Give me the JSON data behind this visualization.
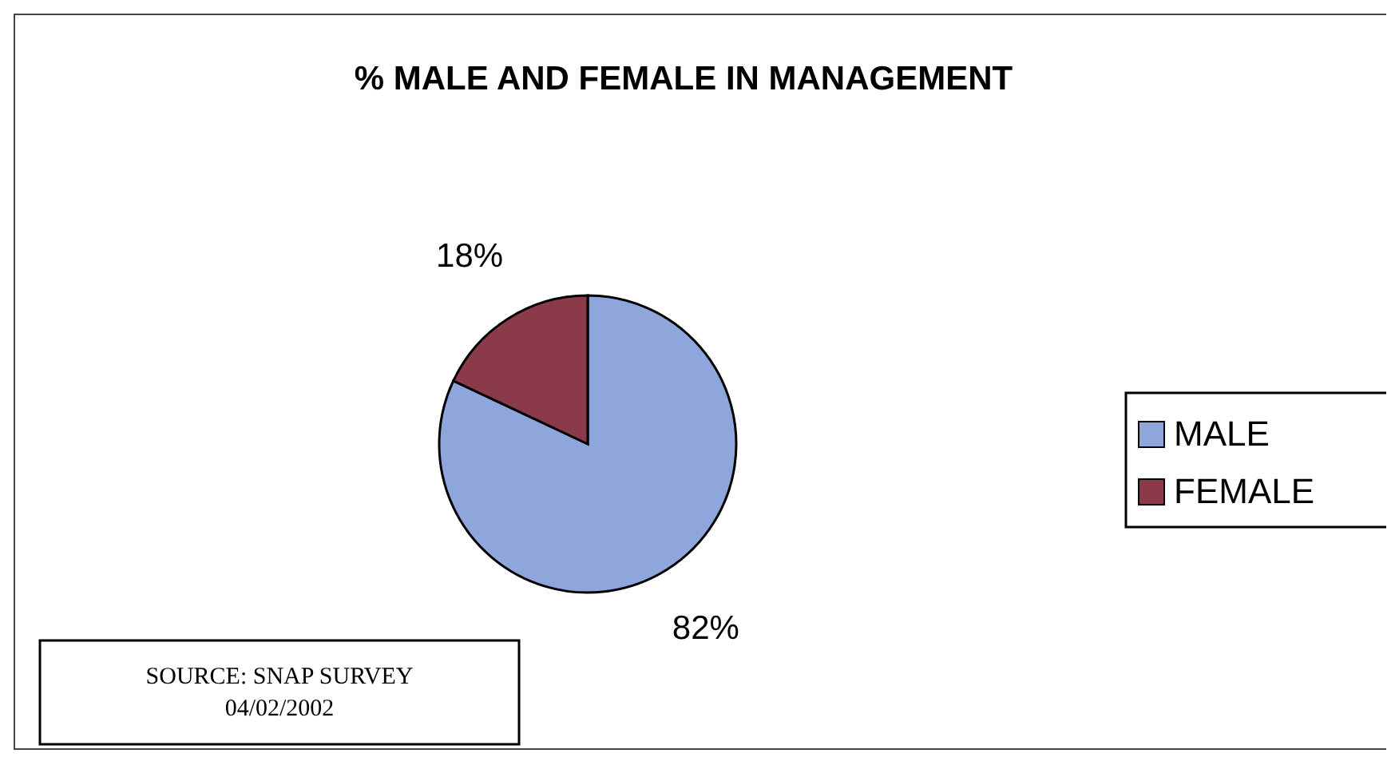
{
  "chart_data": {
    "type": "pie",
    "title": "% MALE AND FEMALE IN MANAGEMENT",
    "categories": [
      "MALE",
      "FEMALE"
    ],
    "values": [
      82,
      18
    ],
    "colors": [
      "#8fa6dc",
      "#8b3a4a"
    ],
    "value_labels": [
      "82%",
      "18%"
    ],
    "legend": "right",
    "annotations": [
      "SOURCE: SNAP SURVEY\n04/02/2002"
    ]
  }
}
